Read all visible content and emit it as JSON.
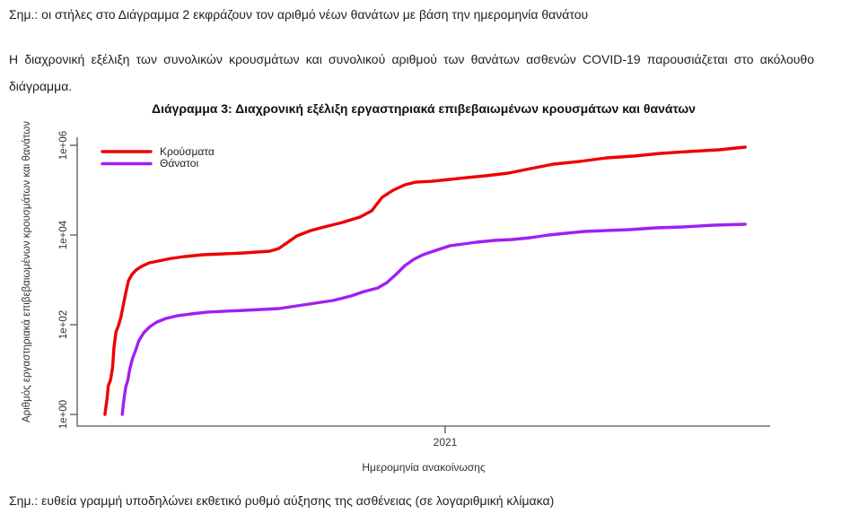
{
  "document": {
    "note_top": "Σημ.: οι στήλες στο Διάγραμμα 2 εκφράζουν τον αριθμό νέων θανάτων με βάση την ημερομηνία θανάτου",
    "paragraph": "Η διαχρονική εξέλιξη των συνολικών κρουσμάτων και συνολικού αριθμού των θανάτων ασθενών COVID-19 παρουσιάζεται στο ακόλουθο διάγραμμα.",
    "note_bottom": "Σημ.: ευθεία γραμμή υποδηλώνει εκθετικό ρυθμό αύξησης της ασθένειας (σε λογαριθμική κλίμακα)"
  },
  "chart_data": {
    "type": "line",
    "title": "Διάγραμμα 3: Διαχρονική εξέλιξη εργαστηριακά επιβεβαιωμένων κρουσμάτων και θανάτων",
    "xlabel": "Ημερομηνία ανακοίνωσης",
    "ylabel": "Αριθμός εργαστηριακά επιβεβαιωμένων κρουσμάτων και θανάτων",
    "yscale": "log10",
    "ylim": [
      1,
      1000000
    ],
    "ytick_labels": [
      "1e+00",
      "1e+02",
      "1e+04",
      "1e+06"
    ],
    "ytick_values": [
      1,
      100,
      10000,
      1000000
    ],
    "xtick_labels": [
      "2021"
    ],
    "xtick_t": [
      0.531
    ],
    "grid": false,
    "legend_position": "top-left",
    "colors": {
      "cases": "#EE0000",
      "deaths": "#A020F0",
      "axis": "#555555"
    },
    "series": [
      {
        "name": "Κρούσματα",
        "key": "cases",
        "color": "#EE0000",
        "points": [
          [
            0.04,
            1
          ],
          [
            0.043,
            2.2
          ],
          [
            0.045,
            4.4
          ],
          [
            0.048,
            5.8
          ],
          [
            0.051,
            11
          ],
          [
            0.053,
            30
          ],
          [
            0.056,
            69
          ],
          [
            0.06,
            100
          ],
          [
            0.063,
            145
          ],
          [
            0.066,
            251
          ],
          [
            0.07,
            501
          ],
          [
            0.074,
            955
          ],
          [
            0.079,
            1320
          ],
          [
            0.085,
            1660
          ],
          [
            0.093,
            2000
          ],
          [
            0.104,
            2400
          ],
          [
            0.117,
            2630
          ],
          [
            0.136,
            3020
          ],
          [
            0.155,
            3310
          ],
          [
            0.181,
            3630
          ],
          [
            0.211,
            3800
          ],
          [
            0.24,
            3980
          ],
          [
            0.259,
            4170
          ],
          [
            0.278,
            4370
          ],
          [
            0.291,
            5010
          ],
          [
            0.304,
            6920
          ],
          [
            0.317,
            9550
          ],
          [
            0.337,
            12600
          ],
          [
            0.356,
            15100
          ],
          [
            0.382,
            19000
          ],
          [
            0.408,
            25100
          ],
          [
            0.425,
            34700
          ],
          [
            0.44,
            69200
          ],
          [
            0.456,
            100000
          ],
          [
            0.473,
            132000
          ],
          [
            0.488,
            151000
          ],
          [
            0.512,
            158000
          ],
          [
            0.538,
            174000
          ],
          [
            0.563,
            191000
          ],
          [
            0.589,
            209000
          ],
          [
            0.622,
            240000
          ],
          [
            0.654,
            302000
          ],
          [
            0.687,
            380000
          ],
          [
            0.725,
            437000
          ],
          [
            0.764,
            525000
          ],
          [
            0.803,
            575000
          ],
          [
            0.842,
            661000
          ],
          [
            0.881,
            724000
          ],
          [
            0.926,
            794000
          ],
          [
            0.964,
            912000
          ]
        ]
      },
      {
        "name": "Θάνατοι",
        "key": "deaths",
        "color": "#A020F0",
        "points": [
          [
            0.065,
            1
          ],
          [
            0.067,
            1.9
          ],
          [
            0.07,
            4
          ],
          [
            0.073,
            5.8
          ],
          [
            0.076,
            10.5
          ],
          [
            0.08,
            18
          ],
          [
            0.084,
            26
          ],
          [
            0.089,
            44
          ],
          [
            0.096,
            66
          ],
          [
            0.105,
            91
          ],
          [
            0.115,
            115
          ],
          [
            0.128,
            138
          ],
          [
            0.144,
            158
          ],
          [
            0.164,
            174
          ],
          [
            0.188,
            191
          ],
          [
            0.214,
            200
          ],
          [
            0.24,
            209
          ],
          [
            0.266,
            219
          ],
          [
            0.291,
            229
          ],
          [
            0.317,
            263
          ],
          [
            0.343,
            302
          ],
          [
            0.369,
            347
          ],
          [
            0.395,
            437
          ],
          [
            0.414,
            550
          ],
          [
            0.434,
            661
          ],
          [
            0.447,
            871
          ],
          [
            0.46,
            1320
          ],
          [
            0.473,
            2090
          ],
          [
            0.486,
            2880
          ],
          [
            0.499,
            3630
          ],
          [
            0.518,
            4570
          ],
          [
            0.538,
            5750
          ],
          [
            0.557,
            6310
          ],
          [
            0.576,
            6920
          ],
          [
            0.602,
            7590
          ],
          [
            0.628,
            7940
          ],
          [
            0.654,
            8710
          ],
          [
            0.68,
            10000
          ],
          [
            0.706,
            10970
          ],
          [
            0.732,
            12000
          ],
          [
            0.764,
            12590
          ],
          [
            0.797,
            13180
          ],
          [
            0.835,
            14450
          ],
          [
            0.874,
            15140
          ],
          [
            0.919,
            16600
          ],
          [
            0.964,
            17380
          ]
        ]
      }
    ]
  }
}
